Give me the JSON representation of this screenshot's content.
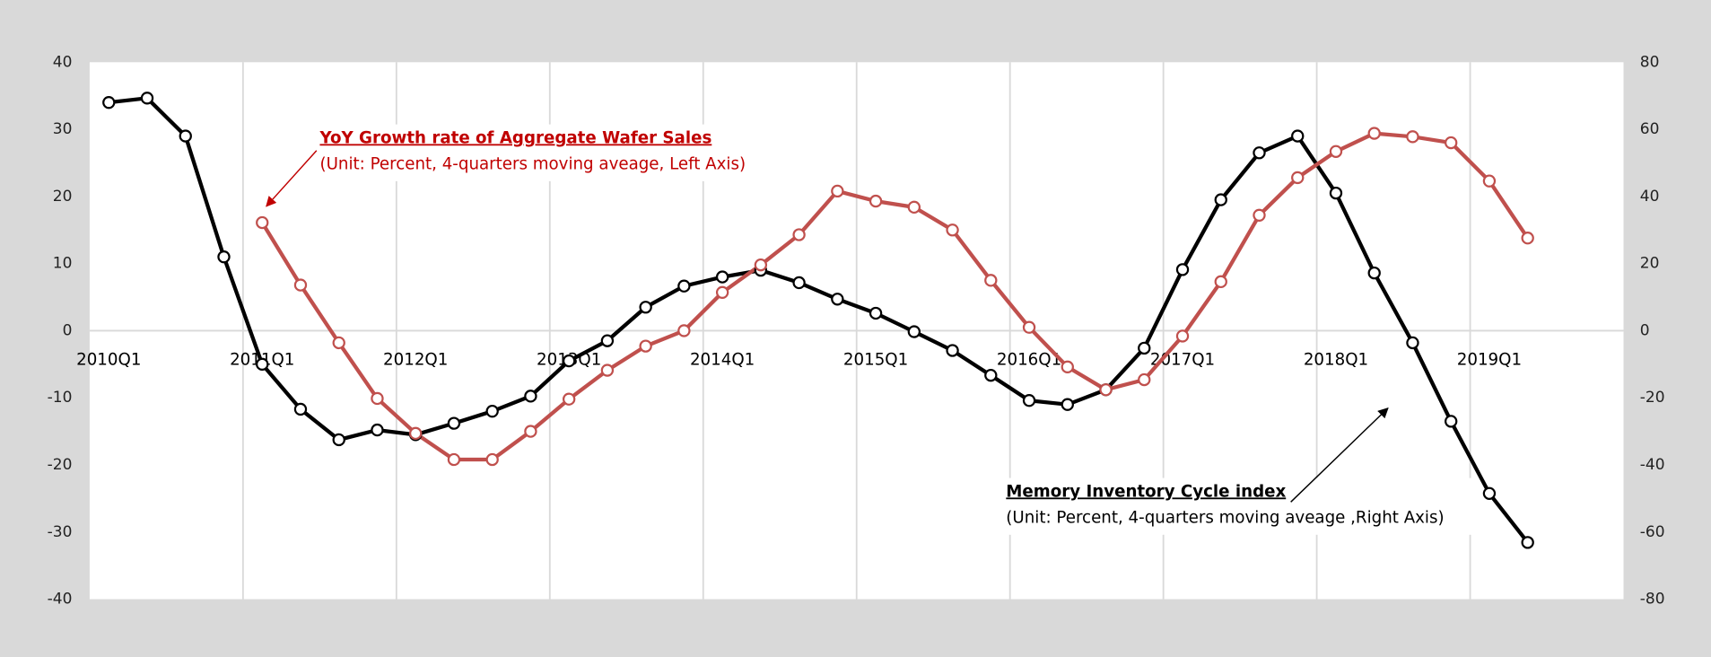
{
  "chart_data": {
    "type": "line",
    "categories": [
      "2010Q1",
      null,
      null,
      null,
      "2011Q1",
      null,
      null,
      null,
      "2012Q1",
      null,
      null,
      null,
      "2013Q1",
      null,
      null,
      null,
      "2014Q1",
      null,
      null,
      null,
      "2015Q1",
      null,
      null,
      null,
      "2016Q1",
      null,
      null,
      null,
      "2017Q1",
      null,
      null,
      null,
      "2018Q1",
      null,
      null,
      null,
      "2019Q1",
      null,
      null,
      null
    ],
    "series": [
      {
        "name": "Memory Inventory Cycle index",
        "color": "#000000",
        "axis": "y2",
        "values": [
          68,
          69.3,
          58,
          22,
          -10,
          -23.4,
          -32.5,
          -29.6,
          -31,
          -27.6,
          -24,
          -19.5,
          -9,
          -3,
          7,
          13.3,
          16,
          18,
          14.3,
          9.4,
          5.2,
          -0.3,
          -5.9,
          -13.3,
          -20.8,
          -22,
          -17.6,
          -5.2,
          18.2,
          39,
          53,
          58,
          41,
          17.2,
          -3.6,
          -27,
          -48.5,
          -63.1,
          null,
          null
        ]
      },
      {
        "name": "YoY Growth rate of Aggregate Wafer Sales",
        "color": "#c0504d",
        "values": [
          null,
          null,
          null,
          null,
          16.1,
          6.8,
          -1.8,
          -10.1,
          -15.3,
          -19.2,
          -19.2,
          -15,
          -10.2,
          -5.9,
          -2.3,
          0,
          5.7,
          9.8,
          14.3,
          20.8,
          19.3,
          18.4,
          15,
          7.5,
          0.5,
          -5.4,
          -8.8,
          -7.3,
          -0.8,
          7.3,
          17.2,
          22.8,
          26.7,
          29.4,
          28.9,
          28,
          22.3,
          13.8,
          null,
          null
        ]
      }
    ],
    "ylim": [
      -40,
      40
    ],
    "yticks": [
      -40,
      -30,
      -20,
      -10,
      0,
      10,
      20,
      30,
      40
    ],
    "y2lim": [
      -80,
      80
    ],
    "y2ticks": [
      -80,
      -60,
      -40,
      -20,
      0,
      20,
      40,
      60,
      80
    ],
    "annotations": [
      {
        "title": "YoY Growth rate of Aggregate Wafer Sales",
        "text": "(Unit: Percent, 4-quarters moving aveage, Left Axis)"
      },
      {
        "title": "Memory Inventory Cycle index",
        "text": "(Unit: Percent, 4-quarters moving aveage ,Right Axis)"
      }
    ]
  }
}
